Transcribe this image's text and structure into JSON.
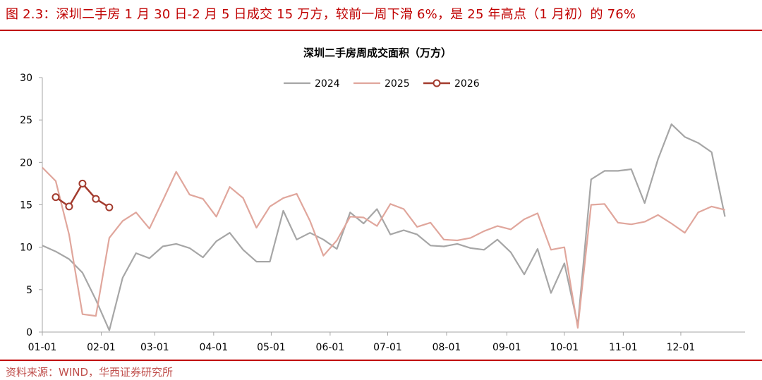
{
  "figure": {
    "title": "图 2.3：深圳二手房 1 月 30 日-2 月 5 日成交 15 万方，较前一周下滑 6%，是 25 年高点（1 月初）的 76%",
    "source": "资料来源：WIND，华西证券研究所"
  },
  "colors": {
    "accent": "#c00000",
    "source_text": "#c0504d",
    "axis": "#a6a6a6"
  },
  "chart_data": {
    "type": "line",
    "title": "深圳二手房周成交面积（万方）",
    "xlabel": "",
    "ylabel": "",
    "x_unit": "week_of_year",
    "xlim": [
      1,
      53.5
    ],
    "ylim": [
      0,
      30
    ],
    "y_ticks": [
      0,
      5,
      10,
      15,
      20,
      25,
      30
    ],
    "x_ticks": [
      {
        "label": "01-01",
        "week": 1
      },
      {
        "label": "02-01",
        "week": 5.4
      },
      {
        "label": "03-01",
        "week": 9.4
      },
      {
        "label": "04-01",
        "week": 13.8
      },
      {
        "label": "05-01",
        "week": 18.1
      },
      {
        "label": "06-01",
        "week": 22.5
      },
      {
        "label": "07-01",
        "week": 26.8
      },
      {
        "label": "08-01",
        "week": 31.2
      },
      {
        "label": "09-01",
        "week": 35.7
      },
      {
        "label": "10-01",
        "week": 40.0
      },
      {
        "label": "11-01",
        "week": 44.4
      },
      {
        "label": "12-01",
        "week": 48.7
      }
    ],
    "grid": false,
    "legend_position": "top-center",
    "series": [
      {
        "name": "2024",
        "color": "#a6a6a6",
        "marker": false,
        "x": [
          1,
          2,
          3,
          4,
          5,
          6,
          7,
          8,
          9,
          10,
          11,
          12,
          13,
          14,
          15,
          16,
          17,
          18,
          19,
          20,
          21,
          22,
          23,
          24,
          25,
          26,
          27,
          28,
          29,
          30,
          31,
          32,
          33,
          34,
          35,
          36,
          37,
          38,
          39,
          40,
          41,
          42,
          43,
          44,
          45,
          46,
          47,
          48,
          49,
          50,
          51,
          52
        ],
        "values": [
          10.2,
          9.5,
          8.6,
          7.0,
          3.8,
          0.2,
          6.4,
          9.3,
          8.7,
          10.1,
          10.4,
          9.9,
          8.8,
          10.7,
          11.7,
          9.7,
          8.3,
          8.3,
          14.3,
          10.9,
          11.7,
          10.9,
          9.8,
          14.1,
          12.8,
          14.5,
          11.5,
          12.0,
          11.5,
          10.2,
          10.1,
          10.4,
          9.9,
          9.7,
          10.9,
          9.4,
          6.8,
          9.8,
          4.6,
          8.1,
          0.8,
          18.0,
          19.0,
          19.0,
          19.2,
          15.2,
          20.4,
          24.5,
          23.0,
          22.3,
          21.2,
          13.6
        ]
      },
      {
        "name": "2025",
        "color": "#e0a69c",
        "marker": false,
        "x": [
          1,
          2,
          3,
          4,
          5,
          6,
          7,
          8,
          9,
          10,
          11,
          12,
          13,
          14,
          15,
          16,
          17,
          18,
          19,
          20,
          21,
          22,
          23,
          24,
          25,
          26,
          27,
          28,
          29,
          30,
          31,
          32,
          33,
          34,
          35,
          36,
          37,
          38,
          39,
          40,
          41,
          42,
          43,
          44,
          45,
          46,
          47,
          48,
          49,
          50,
          51,
          52
        ],
        "values": [
          19.4,
          17.8,
          11.5,
          2.1,
          1.9,
          11.1,
          13.1,
          14.1,
          12.2,
          15.5,
          18.9,
          16.2,
          15.7,
          13.6,
          17.1,
          15.8,
          12.3,
          14.8,
          15.8,
          16.3,
          13.1,
          9.0,
          10.8,
          13.6,
          13.5,
          12.5,
          15.1,
          14.5,
          12.4,
          12.9,
          10.9,
          10.8,
          11.1,
          11.9,
          12.5,
          12.1,
          13.3,
          14.0,
          9.7,
          10.0,
          0.5,
          15.0,
          15.1,
          12.9,
          12.7,
          13.0,
          13.8,
          12.8,
          11.7,
          14.1,
          14.8,
          14.4
        ]
      },
      {
        "name": "2026",
        "color": "#a33b2e",
        "marker": true,
        "x": [
          2,
          3,
          4,
          5,
          6,
          7
        ],
        "values": [
          15.9,
          14.8,
          17.5,
          15.7,
          14.7,
          null
        ]
      }
    ]
  }
}
